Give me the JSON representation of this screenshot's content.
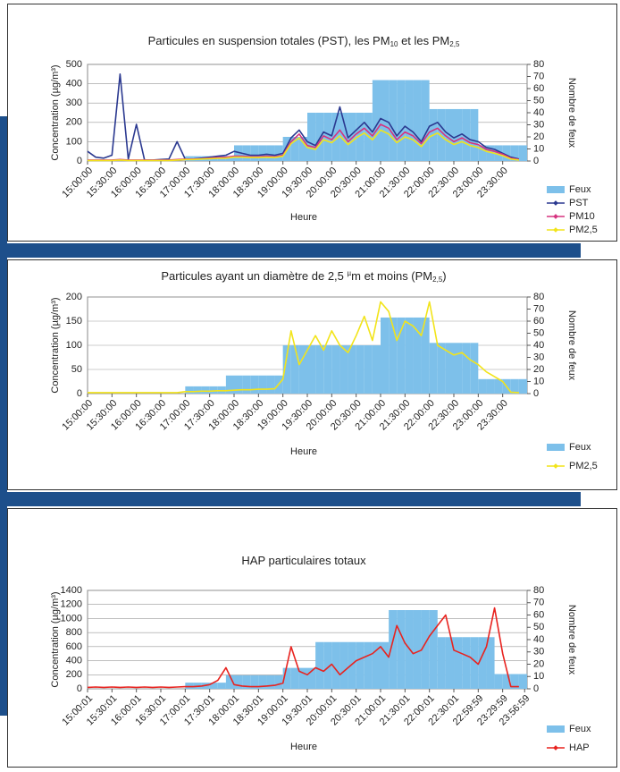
{
  "chart_data": [
    {
      "type": "line",
      "title": [
        {
          "text": "Particules en suspension totales (PST), les PM"
        },
        {
          "text": "10",
          "sub": true
        },
        {
          "text": " et les PM"
        },
        {
          "text": "2,5",
          "sub": true
        }
      ],
      "xlabel": "Heure",
      "ylabel": "Concentration (µg/m³)",
      "y2label": "Nombre de feux",
      "x": [
        "15:00:00",
        "15:10:00",
        "15:20:00",
        "15:30:00",
        "15:40:00",
        "15:50:00",
        "16:00:00",
        "16:10:00",
        "16:20:00",
        "16:30:00",
        "16:40:00",
        "16:50:00",
        "17:00:00",
        "17:10:00",
        "17:20:00",
        "17:30:00",
        "17:40:00",
        "17:50:00",
        "18:00:00",
        "18:10:00",
        "18:20:00",
        "18:30:00",
        "18:40:00",
        "18:50:00",
        "19:00:00",
        "19:10:00",
        "19:20:00",
        "19:30:00",
        "19:40:00",
        "19:50:00",
        "20:00:00",
        "20:10:00",
        "20:20:00",
        "20:30:00",
        "20:40:00",
        "20:50:00",
        "21:00:00",
        "21:10:00",
        "21:20:00",
        "21:30:00",
        "21:40:00",
        "21:50:00",
        "22:00:00",
        "22:10:00",
        "22:20:00",
        "22:30:00",
        "22:40:00",
        "22:50:00",
        "23:00:00",
        "23:10:00",
        "23:20:00",
        "23:30:00",
        "23:40:00",
        "23:50:00"
      ],
      "xlim": [
        "15:00:00",
        "24:00:00"
      ],
      "xticks": [
        "15:00:00",
        "15:30:00",
        "16:00:00",
        "16:30:00",
        "17:00:00",
        "17:30:00",
        "18:00:00",
        "18:30:00",
        "19:00:00",
        "19:30:00",
        "20:00:00",
        "20:30:00",
        "21:00:00",
        "21:30:00",
        "22:00:00",
        "22:30:00",
        "23:00:00",
        "23:30:00"
      ],
      "ylim": [
        0,
        500
      ],
      "yticks": [
        0,
        100,
        200,
        300,
        400,
        500
      ],
      "y2lim": [
        0,
        80
      ],
      "y2ticks": [
        0,
        10,
        20,
        30,
        40,
        50,
        60,
        70,
        80
      ],
      "grid": true,
      "legend": "bottom-right",
      "series": [
        {
          "name": "Feux",
          "type": "bar",
          "axis": "y2",
          "color": "#7dc0ea",
          "values": [
            0,
            0,
            0,
            0,
            0,
            0,
            0,
            0,
            0,
            0,
            0,
            0,
            4,
            4,
            4,
            4,
            4,
            4,
            13,
            13,
            13,
            13,
            13,
            13,
            20,
            20,
            20,
            40,
            40,
            40,
            40,
            40,
            40,
            40,
            40,
            67,
            67,
            67,
            67,
            67,
            67,
            67,
            43,
            43,
            43,
            43,
            43,
            43,
            13,
            13,
            13,
            13,
            13,
            13
          ]
        },
        {
          "name": "PST",
          "color": "#2b3990",
          "values": [
            50,
            20,
            15,
            30,
            450,
            10,
            190,
            5,
            5,
            8,
            10,
            100,
            10,
            10,
            15,
            20,
            25,
            30,
            50,
            40,
            30,
            30,
            35,
            30,
            40,
            120,
            160,
            100,
            80,
            150,
            130,
            280,
            120,
            160,
            200,
            150,
            220,
            200,
            130,
            180,
            150,
            100,
            180,
            200,
            150,
            120,
            140,
            110,
            100,
            70,
            60,
            40,
            20,
            10
          ]
        },
        {
          "name": "PM10",
          "color": "#d6337f",
          "values": [
            5,
            5,
            5,
            5,
            8,
            5,
            5,
            5,
            5,
            5,
            5,
            8,
            10,
            10,
            12,
            15,
            18,
            20,
            25,
            25,
            22,
            22,
            25,
            22,
            30,
            100,
            140,
            80,
            70,
            130,
            110,
            160,
            100,
            140,
            170,
            130,
            190,
            170,
            110,
            150,
            130,
            90,
            150,
            170,
            130,
            100,
            120,
            95,
            85,
            60,
            50,
            35,
            15,
            8
          ]
        },
        {
          "name": "PM2,5",
          "color": "#f2e41a",
          "values": [
            3,
            3,
            3,
            3,
            5,
            3,
            3,
            3,
            3,
            3,
            3,
            5,
            8,
            8,
            10,
            12,
            14,
            15,
            20,
            20,
            18,
            18,
            20,
            18,
            25,
            90,
            120,
            70,
            60,
            110,
            95,
            130,
            85,
            120,
            145,
            110,
            160,
            140,
            95,
            125,
            110,
            75,
            125,
            145,
            110,
            85,
            100,
            80,
            70,
            50,
            40,
            28,
            10,
            5
          ]
        }
      ]
    },
    {
      "type": "line",
      "title": [
        {
          "text": "Particules ayant un diamètre de 2,5 "
        },
        {
          "text": "µ",
          "sup": true
        },
        {
          "text": "m et moins (PM"
        },
        {
          "text": "2,5",
          "sub": true
        },
        {
          "text": ")"
        }
      ],
      "xlabel": "Heure",
      "ylabel": "Concentration (µg/m³)",
      "y2label": "Nombre de feux",
      "x": [
        "15:00:00",
        "15:10:00",
        "15:20:00",
        "15:30:00",
        "15:40:00",
        "15:50:00",
        "16:00:00",
        "16:10:00",
        "16:20:00",
        "16:30:00",
        "16:40:00",
        "16:50:00",
        "17:00:00",
        "17:10:00",
        "17:20:00",
        "17:30:00",
        "17:40:00",
        "17:50:00",
        "18:00:00",
        "18:10:00",
        "18:20:00",
        "18:30:00",
        "18:40:00",
        "18:50:00",
        "19:00:00",
        "19:10:00",
        "19:20:00",
        "19:30:00",
        "19:40:00",
        "19:50:00",
        "20:00:00",
        "20:10:00",
        "20:20:00",
        "20:30:00",
        "20:40:00",
        "20:50:00",
        "21:00:00",
        "21:10:00",
        "21:20:00",
        "21:30:00",
        "21:40:00",
        "21:50:00",
        "22:00:00",
        "22:10:00",
        "22:20:00",
        "22:30:00",
        "22:40:00",
        "22:50:00",
        "23:00:00",
        "23:10:00",
        "23:20:00",
        "23:30:00",
        "23:40:00",
        "23:50:00"
      ],
      "xlim": [
        "15:00:00",
        "24:00:00"
      ],
      "xticks": [
        "15:00:00",
        "15:30:00",
        "16:00:00",
        "16:30:00",
        "17:00:00",
        "17:30:00",
        "18:00:00",
        "18:30:00",
        "19:00:00",
        "19:30:00",
        "20:00:00",
        "20:30:00",
        "21:00:00",
        "21:30:00",
        "22:00:00",
        "22:30:00",
        "23:00:00",
        "23:30:00"
      ],
      "ylim": [
        0,
        200
      ],
      "yticks": [
        0,
        50,
        100,
        150,
        200
      ],
      "y2lim": [
        0,
        80
      ],
      "y2ticks": [
        0,
        10,
        20,
        30,
        40,
        50,
        60,
        70,
        80
      ],
      "grid": true,
      "legend": "bottom-right",
      "series": [
        {
          "name": "Feux",
          "type": "bar",
          "axis": "y2",
          "color": "#7dc0ea",
          "values": [
            0,
            0,
            0,
            0,
            0,
            0,
            0,
            0,
            0,
            0,
            0,
            0,
            6,
            6,
            6,
            6,
            6,
            15,
            15,
            15,
            15,
            15,
            15,
            15,
            40,
            40,
            40,
            40,
            40,
            40,
            40,
            40,
            40,
            40,
            40,
            40,
            63,
            63,
            63,
            63,
            63,
            63,
            42,
            42,
            42,
            42,
            42,
            42,
            12,
            12,
            12,
            12,
            12,
            12
          ]
        },
        {
          "name": "PM2,5",
          "color": "#f2e41a",
          "values": [
            2,
            2,
            2,
            2,
            2,
            2,
            2,
            2,
            2,
            2,
            2,
            2,
            4,
            4,
            5,
            5,
            6,
            6,
            7,
            8,
            8,
            9,
            9,
            10,
            30,
            130,
            60,
            90,
            120,
            90,
            130,
            100,
            85,
            120,
            160,
            110,
            190,
            170,
            110,
            150,
            140,
            120,
            190,
            100,
            90,
            80,
            85,
            70,
            60,
            45,
            35,
            25,
            3,
            2
          ]
        }
      ]
    },
    {
      "type": "line",
      "title": [
        {
          "text": "HAP particulaires totaux"
        }
      ],
      "xlabel": "Heure",
      "ylabel": "Concentration (µg/m³)",
      "y2label": "Nombre de feux",
      "x": [
        "15:00:01",
        "15:10:01",
        "15:20:01",
        "15:30:01",
        "15:40:01",
        "15:50:01",
        "16:00:01",
        "16:10:01",
        "16:20:01",
        "16:30:01",
        "16:40:01",
        "16:50:01",
        "17:00:01",
        "17:10:01",
        "17:20:01",
        "17:30:01",
        "17:40:01",
        "17:50:01",
        "18:00:01",
        "18:10:01",
        "18:20:01",
        "18:30:01",
        "18:40:01",
        "18:50:01",
        "19:00:01",
        "19:10:01",
        "19:20:01",
        "19:30:01",
        "19:40:01",
        "19:50:01",
        "20:00:01",
        "20:10:01",
        "20:20:01",
        "20:30:01",
        "20:40:01",
        "20:50:01",
        "21:00:01",
        "21:10:01",
        "21:20:01",
        "21:30:01",
        "21:40:01",
        "21:50:01",
        "22:00:01",
        "22:10:01",
        "22:20:01",
        "22:30:01",
        "22:40:01",
        "22:50:01",
        "23:00:01",
        "23:10:01",
        "23:20:01",
        "23:30:01",
        "23:40:01",
        "23:50:01"
      ],
      "xlim": [
        "15:00:01",
        "24:00:00"
      ],
      "xticks": [
        "15:00:01",
        "15:30:01",
        "16:00:01",
        "16:30:01",
        "17:00:01",
        "17:30:01",
        "18:00:01",
        "18:30:01",
        "19:00:01",
        "19:30:01",
        "20:00:01",
        "20:30:01",
        "21:00:01",
        "21:30:01",
        "22:00:01",
        "22:30:01",
        "22:59:59",
        "23:29:59",
        "23:56:59"
      ],
      "ylim": [
        0,
        1400
      ],
      "yticks": [
        0,
        200,
        400,
        600,
        800,
        1000,
        1200,
        1400
      ],
      "y2lim": [
        0,
        80
      ],
      "y2ticks": [
        0,
        10,
        20,
        30,
        40,
        50,
        60,
        70,
        80
      ],
      "grid": true,
      "legend": "bottom-right",
      "series": [
        {
          "name": "Feux",
          "type": "bar",
          "axis": "y2",
          "color": "#7dc0ea",
          "values": [
            0,
            0,
            0,
            0,
            0,
            0,
            0,
            0,
            0,
            0,
            0,
            0,
            5,
            5,
            5,
            5,
            5,
            11,
            11,
            11,
            11,
            11,
            11,
            11,
            17,
            17,
            17,
            17,
            38,
            38,
            38,
            38,
            38,
            38,
            38,
            38,
            38,
            64,
            64,
            64,
            64,
            64,
            64,
            42,
            42,
            42,
            42,
            42,
            42,
            42,
            12,
            12,
            12,
            12
          ]
        },
        {
          "name": "HAP",
          "color": "#e8231f",
          "values": [
            20,
            25,
            20,
            25,
            20,
            25,
            20,
            25,
            20,
            25,
            20,
            25,
            30,
            30,
            40,
            60,
            120,
            300,
            60,
            40,
            30,
            30,
            40,
            50,
            80,
            600,
            250,
            200,
            300,
            250,
            350,
            200,
            300,
            400,
            450,
            500,
            600,
            450,
            900,
            650,
            500,
            550,
            750,
            900,
            1050,
            550,
            500,
            450,
            350,
            600,
            1150,
            500,
            30,
            30
          ]
        }
      ]
    }
  ]
}
